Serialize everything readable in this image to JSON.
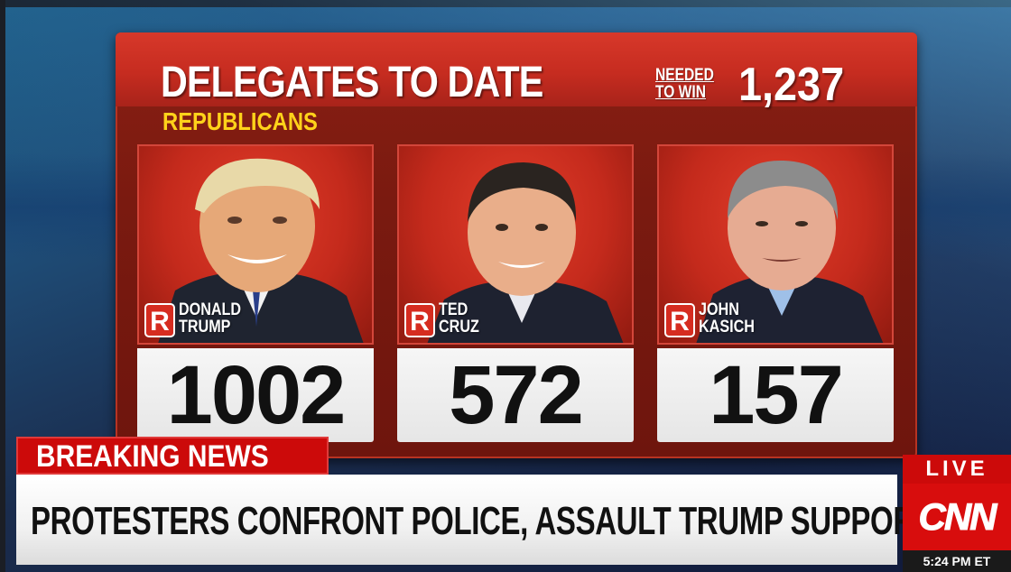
{
  "graphic": {
    "title": "DELEGATES TO DATE",
    "subtitle": "REPUBLICANS",
    "needed_line1": "NEEDED",
    "needed_line2": "TO WIN",
    "needed_value": "1,237"
  },
  "candidates": [
    {
      "first": "DONALD",
      "last": "TRUMP",
      "party_badge": "R",
      "delegates": "1002"
    },
    {
      "first": "TED",
      "last": "CRUZ",
      "party_badge": "R",
      "delegates": "572"
    },
    {
      "first": "JOHN",
      "last": "KASICH",
      "party_badge": "R",
      "delegates": "157"
    }
  ],
  "ticker": {
    "label": "BREAKING NEWS",
    "headline": "PROTESTERS CONFRONT POLICE, ASSAULT TRUMP SUPPORTER"
  },
  "network": {
    "live_label": "LIVE",
    "logo_text": "CNN",
    "time": "5:24 PM ET"
  },
  "colors": {
    "panel_red": "#c62c20",
    "breaking_red": "#cc0a0a",
    "subtitle_yellow": "#ffd21a"
  }
}
